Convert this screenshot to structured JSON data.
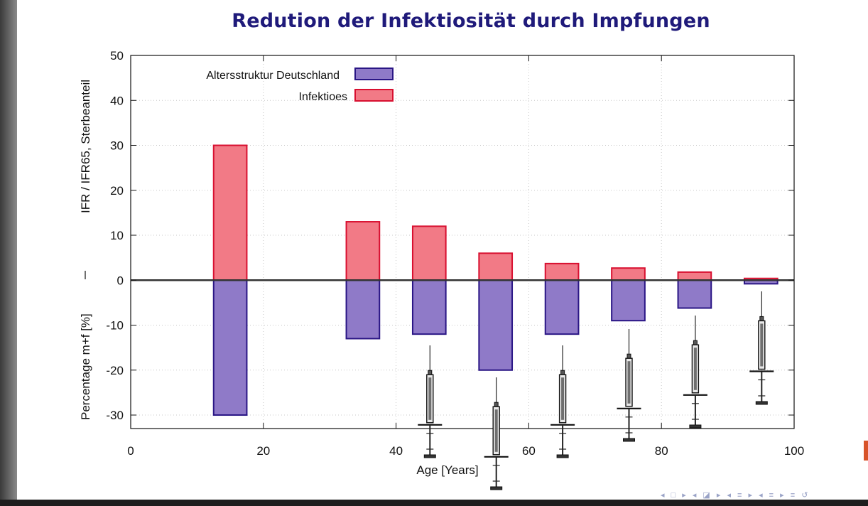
{
  "slide": {
    "title": "Redution der Infektiosität durch Impfungen",
    "nav_symbols": "◂ □ ▸ ◂ ◪ ▸ ◂ ≡ ▸ ◂ ≡ ▸ ≡ ↺"
  },
  "colors": {
    "title": "#1f1a7a",
    "purple_fill": "#8f7ac8",
    "purple_stroke": "#2a1685",
    "red_fill": "#f27a86",
    "red_stroke": "#d81030"
  },
  "chart_data": {
    "type": "bar",
    "xlabel": "Age [Years]",
    "ylabel_top": "IFR / IFR65,   Sterbeanteil",
    "ylabel_bottom": "Percentage m+f [%]",
    "xlim": [
      0,
      100
    ],
    "ylim": [
      -33,
      50
    ],
    "x_ticks": [
      "0",
      "20",
      "40",
      "60",
      "80",
      "100"
    ],
    "y_ticks": [
      "50",
      "40",
      "30",
      "20",
      "10",
      "0",
      "-10",
      "-20",
      "-30"
    ],
    "grid": true,
    "legend_position": "top-left",
    "x": [
      15,
      35,
      45,
      55,
      65,
      75,
      85,
      95
    ],
    "series": [
      {
        "name": "Altersstruktur Deutschland",
        "values": [
          -30,
          -13,
          -12,
          -20,
          -12,
          -9,
          -6.2,
          -0.8
        ]
      },
      {
        "name": "Infektioes",
        "values": [
          30,
          13,
          12,
          6,
          3.7,
          2.7,
          1.8,
          0.4
        ]
      }
    ],
    "annotations": [
      "syringe icons below bars at ages 45, 55, 65, 75, 85, 95"
    ]
  }
}
